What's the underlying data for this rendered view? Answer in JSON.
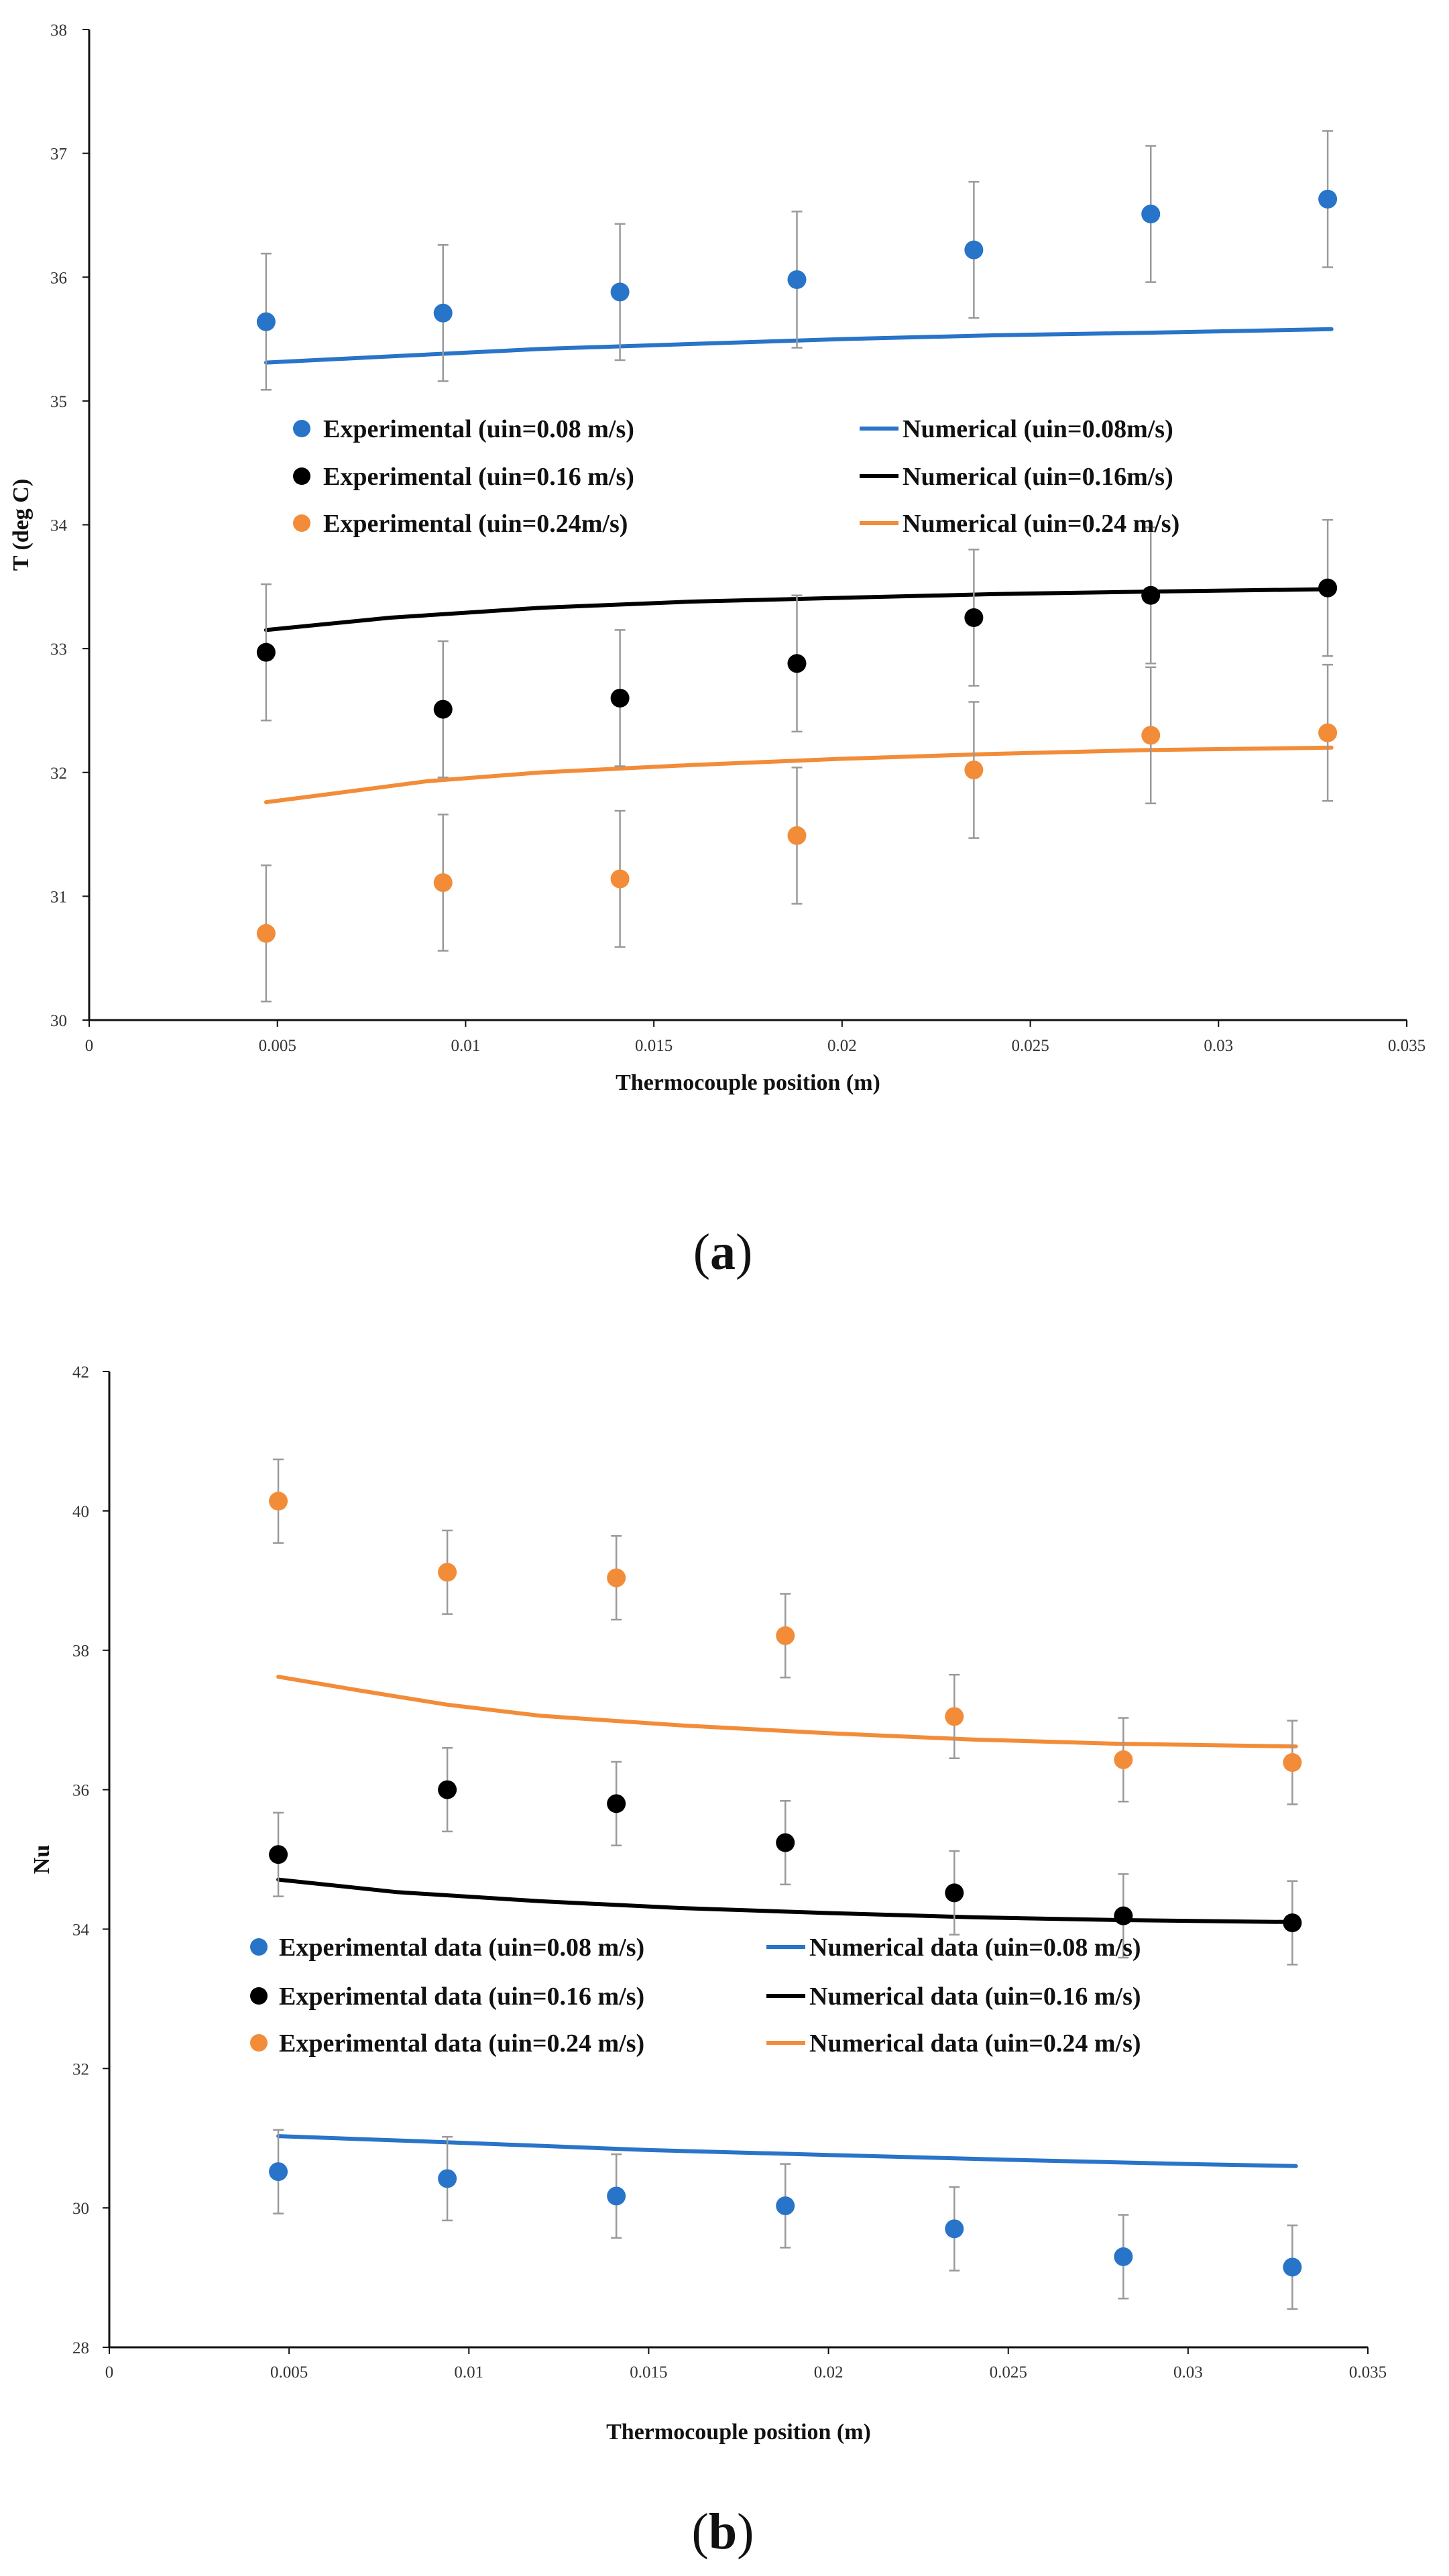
{
  "chart_data": [
    {
      "type": "scatter",
      "panel_label": "(a)",
      "panel_letter": "a",
      "xlabel": "Thermocouple position (m)",
      "ylabel": "T (deg C)",
      "xlim": [
        0,
        0.035
      ],
      "ylim": [
        30,
        38
      ],
      "x_ticks": [
        0,
        0.005,
        0.01,
        0.015,
        0.02,
        0.025,
        0.03,
        0.035
      ],
      "x_tick_labels": [
        "0",
        "0.005",
        "0.01",
        "0.015",
        "0.02",
        "0.025",
        "0.03",
        "0.035"
      ],
      "y_ticks": [
        30,
        31,
        32,
        33,
        34,
        35,
        36,
        37,
        38
      ],
      "y_tick_labels": [
        "30",
        "31",
        "32",
        "33",
        "34",
        "35",
        "36",
        "37",
        "38"
      ],
      "error_bar": 0.55,
      "x_points": [
        0.0047,
        0.0094,
        0.0141,
        0.0188,
        0.0235,
        0.0282,
        0.0329
      ],
      "series": [
        {
          "name": "Experimental (uin=0.08 m/s)",
          "kind": "points",
          "color": "#2874c8",
          "values": [
            35.64,
            35.71,
            35.88,
            35.98,
            36.22,
            36.51,
            36.63
          ]
        },
        {
          "name": "Experimental (uin=0.16 m/s)",
          "kind": "points",
          "color": "#000000",
          "values": [
            32.97,
            32.51,
            32.6,
            32.88,
            33.25,
            33.43,
            33.49
          ]
        },
        {
          "name": "Experimental (uin=0.24m/s)",
          "kind": "points",
          "color": "#f28c38",
          "values": [
            30.7,
            31.11,
            31.14,
            31.49,
            32.02,
            32.3,
            32.32
          ]
        },
        {
          "name": "Numerical (uin=0.08m/s)",
          "kind": "line",
          "color": "#2874c8",
          "x": [
            0.0047,
            0.008,
            0.012,
            0.016,
            0.02,
            0.024,
            0.028,
            0.033
          ],
          "values": [
            35.31,
            35.36,
            35.42,
            35.46,
            35.5,
            35.53,
            35.55,
            35.58
          ]
        },
        {
          "name": "Numerical (uin=0.16m/s)",
          "kind": "line",
          "color": "#000000",
          "x": [
            0.0047,
            0.008,
            0.012,
            0.016,
            0.02,
            0.024,
            0.028,
            0.033
          ],
          "values": [
            33.15,
            33.25,
            33.33,
            33.38,
            33.41,
            33.44,
            33.46,
            33.48
          ]
        },
        {
          "name": "Numerical (uin=0.24 m/s)",
          "kind": "line",
          "color": "#f28c38",
          "x": [
            0.0047,
            0.0065,
            0.009,
            0.012,
            0.016,
            0.02,
            0.024,
            0.028,
            0.033
          ],
          "values": [
            31.76,
            31.83,
            31.93,
            32.0,
            32.06,
            32.11,
            32.15,
            32.18,
            32.2
          ]
        }
      ],
      "legend": {
        "rows": [
          [
            {
              "series": 0,
              "label": "Experimental (uin=0.08 m/s)"
            },
            {
              "series": 3,
              "label": "Numerical (uin=0.08m/s)"
            }
          ],
          [
            {
              "series": 1,
              "label": "Experimental (uin=0.16 m/s)"
            },
            {
              "series": 4,
              "label": "Numerical (uin=0.16m/s)"
            }
          ],
          [
            {
              "series": 2,
              "label": "Experimental (uin=0.24m/s)"
            },
            {
              "series": 5,
              "label": "Numerical (uin=0.24 m/s)"
            }
          ]
        ]
      }
    },
    {
      "type": "scatter",
      "panel_label": "(b)",
      "panel_letter": "b",
      "xlabel": "Thermocouple position (m)",
      "ylabel": "Nu",
      "xlim": [
        0,
        0.035
      ],
      "ylim": [
        28,
        42
      ],
      "x_ticks": [
        0,
        0.005,
        0.01,
        0.015,
        0.02,
        0.025,
        0.03,
        0.035
      ],
      "x_tick_labels": [
        "0",
        "0.005",
        "0.01",
        "0.015",
        "0.02",
        "0.025",
        "0.03",
        "0.035"
      ],
      "y_ticks": [
        28,
        30,
        32,
        34,
        36,
        38,
        40,
        42
      ],
      "y_tick_labels": [
        "28",
        "30",
        "32",
        "34",
        "36",
        "38",
        "40",
        "42"
      ],
      "error_bar": 0.6,
      "x_points": [
        0.0047,
        0.0094,
        0.0141,
        0.0188,
        0.0235,
        0.0282,
        0.0329
      ],
      "series": [
        {
          "name": "Experimental data (uin=0.08 m/s)",
          "kind": "points",
          "color": "#2874c8",
          "values": [
            30.52,
            30.42,
            30.17,
            30.03,
            29.7,
            29.3,
            29.15
          ]
        },
        {
          "name": "Experimental data (uin=0.16 m/s)",
          "kind": "points",
          "color": "#000000",
          "values": [
            35.07,
            36.0,
            35.8,
            35.24,
            34.52,
            34.19,
            34.09
          ]
        },
        {
          "name": "Experimental data (uin=0.24 m/s)",
          "kind": "points",
          "color": "#f28c38",
          "values": [
            40.14,
            39.12,
            39.04,
            38.21,
            37.05,
            36.43,
            36.39
          ]
        },
        {
          "name": "Numerical data (uin=0.08 m/s)",
          "kind": "line",
          "color": "#2874c8",
          "x": [
            0.0047,
            0.01,
            0.015,
            0.02,
            0.025,
            0.03,
            0.033
          ],
          "values": [
            31.03,
            30.93,
            30.83,
            30.76,
            30.69,
            30.63,
            30.6
          ]
        },
        {
          "name": "Numerical data (uin=0.16 m/s)",
          "kind": "line",
          "color": "#000000",
          "x": [
            0.0047,
            0.008,
            0.012,
            0.016,
            0.02,
            0.024,
            0.028,
            0.033
          ],
          "values": [
            34.71,
            34.53,
            34.4,
            34.3,
            34.23,
            34.17,
            34.13,
            34.1
          ]
        },
        {
          "name": "Numerical data (uin=0.24 m/s)",
          "kind": "line",
          "color": "#f28c38",
          "x": [
            0.0047,
            0.007,
            0.0094,
            0.012,
            0.016,
            0.02,
            0.024,
            0.028,
            0.033
          ],
          "values": [
            37.62,
            37.42,
            37.22,
            37.06,
            36.92,
            36.81,
            36.72,
            36.66,
            36.62
          ]
        }
      ],
      "legend": {
        "rows": [
          [
            {
              "series": 0,
              "label": "Experimental data (uin=0.08 m/s)"
            },
            {
              "series": 3,
              "label": "Numerical data (uin=0.08 m/s)"
            }
          ],
          [
            {
              "series": 1,
              "label": "Experimental data (uin=0.16 m/s)"
            },
            {
              "series": 4,
              "label": "Numerical data (uin=0.16 m/s)"
            }
          ],
          [
            {
              "series": 2,
              "label": "Experimental data (uin=0.24 m/s)"
            },
            {
              "series": 5,
              "label": "Numerical data (uin=0.24 m/s)"
            }
          ]
        ]
      }
    }
  ]
}
